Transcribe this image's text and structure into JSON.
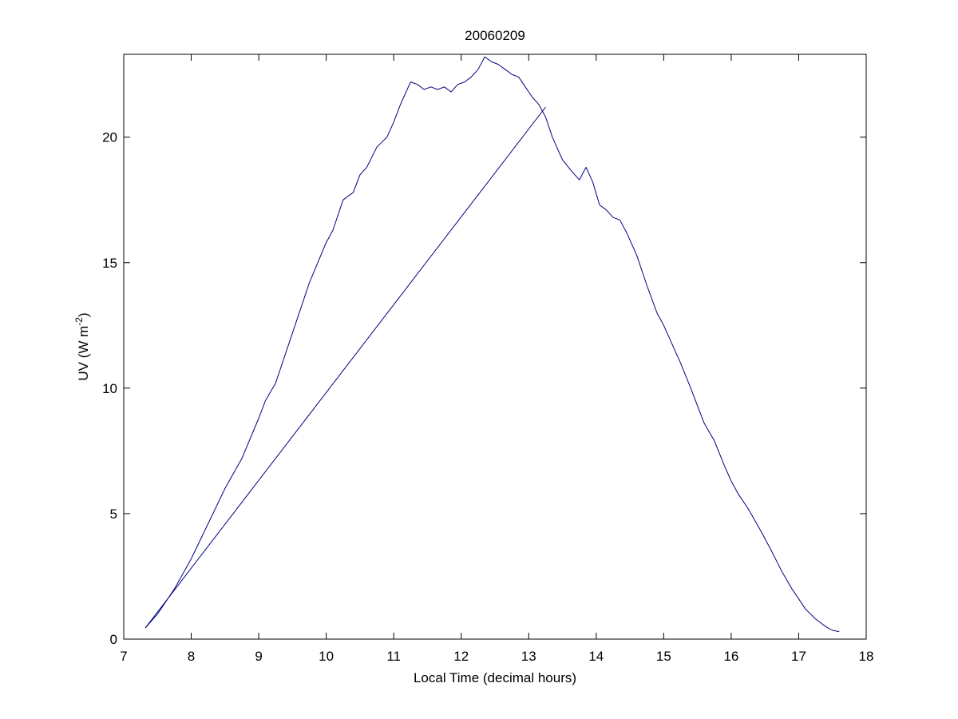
{
  "chart_data": {
    "type": "line",
    "title": "20060209",
    "xlabel": "Local Time (decimal hours)",
    "ylabel": "UV (W m-2)",
    "ylabel_parts": {
      "main": "UV (W m",
      "sup": "-2",
      "close": ")"
    },
    "xlim": [
      7,
      18
    ],
    "ylim": [
      0,
      23.3
    ],
    "xticks": [
      7,
      8,
      9,
      10,
      11,
      12,
      13,
      14,
      15,
      16,
      17,
      18
    ],
    "yticks": [
      0,
      5,
      10,
      15,
      20
    ],
    "grid": false,
    "line_color": "#00007f",
    "series": [
      {
        "x": [
          7.32,
          7.5,
          7.75,
          8.0,
          8.25,
          8.5,
          8.75,
          9.0,
          9.1,
          9.25,
          9.5,
          9.75,
          10.0,
          10.1,
          10.25,
          10.4,
          10.5,
          10.6,
          10.75,
          10.9,
          11.0,
          11.1,
          11.25,
          11.35,
          11.45,
          11.55,
          11.65,
          11.75,
          11.85,
          11.95,
          12.05,
          12.15,
          12.25,
          12.35,
          12.45,
          12.55,
          12.65,
          12.75,
          12.85,
          12.95,
          13.05,
          13.15,
          13.25,
          13.35,
          13.5,
          13.65,
          13.75,
          13.85,
          13.95,
          14.05,
          14.15,
          14.25,
          14.35,
          14.45,
          14.6,
          14.75,
          14.9,
          15.0,
          15.15,
          15.25,
          15.4,
          15.5,
          15.6,
          15.75,
          15.9,
          16.0,
          16.1,
          16.25,
          16.4,
          16.5,
          16.6,
          16.75,
          16.9,
          17.0,
          17.1,
          17.25,
          17.4,
          17.5,
          17.6
        ],
        "y": [
          0.45,
          1.0,
          2.0,
          3.2,
          4.6,
          6.0,
          7.2,
          8.8,
          9.5,
          10.2,
          12.2,
          14.2,
          15.8,
          16.3,
          17.5,
          17.8,
          18.5,
          18.8,
          19.6,
          20.0,
          20.6,
          21.3,
          22.2,
          22.1,
          21.9,
          22.0,
          21.9,
          22.0,
          21.8,
          22.1,
          22.2,
          22.4,
          22.7,
          23.2,
          23.0,
          22.9,
          22.7,
          22.5,
          22.4,
          22.0,
          21.6,
          21.3,
          20.8,
          20.0,
          19.1,
          18.6,
          18.3,
          18.8,
          18.2,
          17.3,
          17.1,
          16.8,
          16.7,
          16.2,
          15.3,
          14.1,
          13.0,
          12.5,
          11.6,
          11.0,
          10.0,
          9.3,
          8.6,
          7.9,
          6.9,
          6.3,
          5.8,
          5.2,
          4.5,
          4.0,
          3.5,
          2.7,
          2.0,
          1.6,
          1.2,
          0.8,
          0.5,
          0.35,
          0.3
        ]
      },
      {
        "x": [
          7.32,
          13.25
        ],
        "y": [
          0.45,
          21.2
        ]
      }
    ]
  }
}
